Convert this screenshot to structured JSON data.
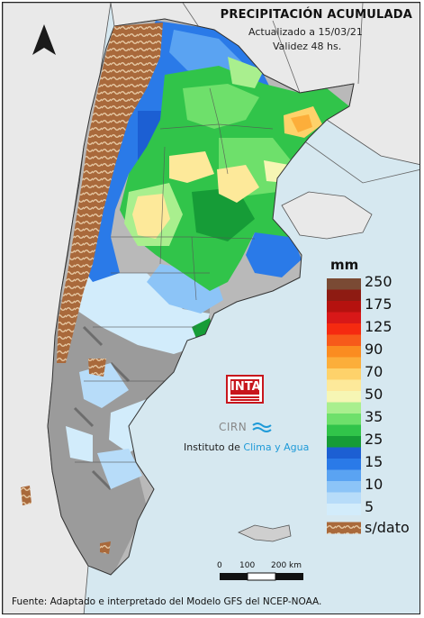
{
  "title": "PRECIPITACIÓN ACUMULADA",
  "updated": "Actualizado a 15/03/21",
  "validity": "Validez 48 hs.",
  "legend": {
    "unit": "mm",
    "classes": [
      {
        "label": "250",
        "color": "#7a4a34"
      },
      {
        "label": "",
        "color": "#8e1b12"
      },
      {
        "label": "175",
        "color": "#b5120f"
      },
      {
        "label": "",
        "color": "#d81818"
      },
      {
        "label": "125",
        "color": "#f52a10"
      },
      {
        "label": "",
        "color": "#f75a1a"
      },
      {
        "label": "90",
        "color": "#fb8c20"
      },
      {
        "label": "",
        "color": "#fcae3a"
      },
      {
        "label": "70",
        "color": "#fed26a"
      },
      {
        "label": "",
        "color": "#fde99a"
      },
      {
        "label": "50",
        "color": "#f6f6b4"
      },
      {
        "label": "",
        "color": "#a9ef8e"
      },
      {
        "label": "35",
        "color": "#6ee06b"
      },
      {
        "label": "",
        "color": "#31c44a"
      },
      {
        "label": "25",
        "color": "#169c37"
      },
      {
        "label": "",
        "color": "#1c5fd3"
      },
      {
        "label": "15",
        "color": "#2a7ae8"
      },
      {
        "label": "",
        "color": "#5aa3f2"
      },
      {
        "label": "10",
        "color": "#8cc4f7"
      },
      {
        "label": "",
        "color": "#b7dcf9"
      },
      {
        "label": "5",
        "color": "#d2ecfb"
      }
    ],
    "nodata_label": "s/dato",
    "nodata_color": "#9c5f33"
  },
  "logo": {
    "text": "INTA",
    "color": "#c8161d"
  },
  "cirn": "CIRN",
  "institute": {
    "prefix": "Instituto de ",
    "accent": "Clima y Agua"
  },
  "scale": {
    "labels": [
      "0",
      "100",
      "200 km"
    ]
  },
  "footer": "Fuente: Adaptado e interpretado del Modelo GFS del NCEP-NOAA."
}
